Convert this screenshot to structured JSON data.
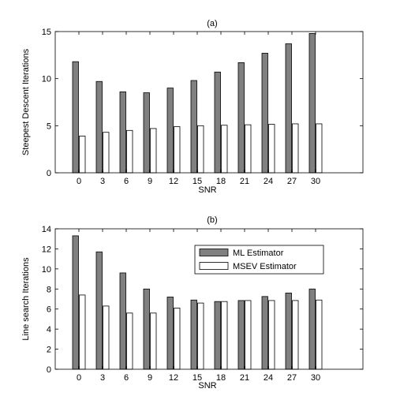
{
  "chart_data": [
    {
      "type": "bar",
      "title": "(a)",
      "xlabel": "SNR",
      "ylabel": "Steepest Descent Iterations",
      "categories": [
        "0",
        "3",
        "6",
        "9",
        "12",
        "15",
        "18",
        "21",
        "24",
        "27",
        "30"
      ],
      "ylim": [
        0,
        15
      ],
      "yticks": [
        0,
        5,
        10,
        15
      ],
      "grid": false,
      "legend": null,
      "series": [
        {
          "color": "#808080",
          "values": [
            11.8,
            9.7,
            8.6,
            8.5,
            9.0,
            9.8,
            10.7,
            11.7,
            12.7,
            13.7,
            14.8
          ]
        },
        {
          "color": "#ffffff",
          "values": [
            3.9,
            4.3,
            4.5,
            4.7,
            4.9,
            5.0,
            5.05,
            5.1,
            5.15,
            5.2,
            5.2
          ]
        }
      ]
    },
    {
      "type": "bar",
      "title": "(b)",
      "xlabel": "SNR",
      "ylabel": "Line search Iterations",
      "categories": [
        "0",
        "3",
        "6",
        "9",
        "12",
        "15",
        "18",
        "21",
        "24",
        "27",
        "30"
      ],
      "ylim": [
        0,
        14
      ],
      "yticks": [
        0,
        2,
        4,
        6,
        8,
        10,
        12,
        14
      ],
      "grid": false,
      "legend": "top-right",
      "series": [
        {
          "name": "ML Estimator",
          "color": "#808080",
          "values": [
            13.3,
            11.7,
            9.6,
            8.0,
            7.2,
            6.9,
            6.75,
            6.85,
            7.25,
            7.6,
            8.0
          ]
        },
        {
          "name": "MSEV Estimator",
          "color": "#ffffff",
          "values": [
            7.4,
            6.3,
            5.6,
            5.6,
            6.1,
            6.6,
            6.75,
            6.85,
            6.85,
            6.85,
            6.9
          ]
        }
      ]
    }
  ]
}
